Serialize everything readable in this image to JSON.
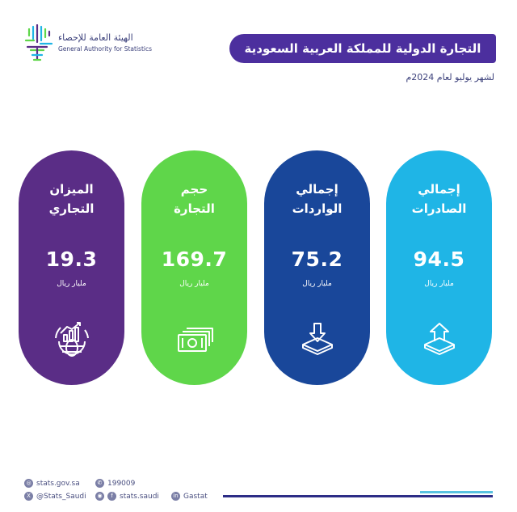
{
  "logo": {
    "name_ar": "الهيئة العامة للإحصاء",
    "name_en": "General Authority for Statistics",
    "colors": [
      "#1fb5e6",
      "#5fd64a",
      "#5a2d86"
    ]
  },
  "header": {
    "title": "التجارة الدولية للمملكة العربية السعودية",
    "subtitle": "لشهر يوليو لعام 2024م",
    "banner_color": "#4c2f9e"
  },
  "cards": [
    {
      "key": "exports",
      "title_line1": "إجمالي",
      "title_line2": "الصادرات",
      "value": "94.5",
      "unit": "مليار ريال",
      "icon": "box-export-icon",
      "color": "#1fb5e6"
    },
    {
      "key": "imports",
      "title_line1": "إجمالي",
      "title_line2": "الواردات",
      "value": "75.2",
      "unit": "مليار ريال",
      "icon": "box-import-icon",
      "color": "#19479a"
    },
    {
      "key": "volume",
      "title_line1": "حجم",
      "title_line2": "التجارة",
      "value": "169.7",
      "unit": "مليار ريال",
      "icon": "banknotes-icon",
      "color": "#5fd64a"
    },
    {
      "key": "balance",
      "title_line1": "الميزان",
      "title_line2": "التجاري",
      "value": "19.3",
      "unit": "مليار ريال",
      "icon": "globe-chart-icon",
      "color": "#5a2d86"
    }
  ],
  "footer": {
    "website": "stats.gov.sa",
    "twitter": "@Stats_Saudi",
    "phone": "199009",
    "social": "stats.saudi",
    "linkedin": "Gastat"
  }
}
